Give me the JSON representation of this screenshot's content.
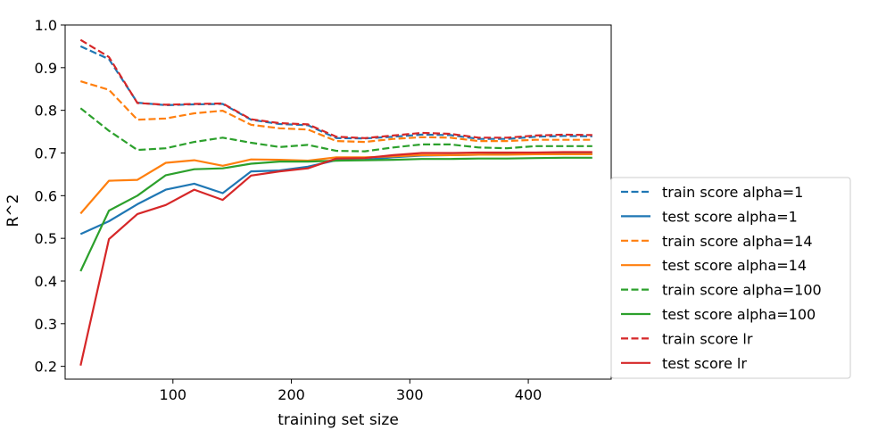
{
  "chart_data": {
    "type": "line",
    "xlabel": "training set size",
    "ylabel": "R^2",
    "xlim": [
      9,
      470
    ],
    "ylim": [
      0.17,
      1.0
    ],
    "xticks": [
      100,
      200,
      300,
      400
    ],
    "yticks": [
      0.2,
      0.3,
      0.4,
      0.5,
      0.6,
      0.7,
      0.8,
      0.9,
      1.0
    ],
    "grid": false,
    "legend_position": "right, outside the axes",
    "x": [
      22,
      46,
      70,
      94,
      118,
      142,
      166,
      190,
      214,
      238,
      262,
      286,
      310,
      334,
      358,
      382,
      406,
      430,
      454
    ],
    "series": [
      {
        "name": "train score alpha=1",
        "color": "#1f77b4",
        "style": "dashed",
        "values": [
          0.95,
          0.92,
          0.818,
          0.812,
          0.814,
          0.815,
          0.778,
          0.768,
          0.765,
          0.735,
          0.734,
          0.738,
          0.743,
          0.742,
          0.733,
          0.733,
          0.738,
          0.74,
          0.739
        ]
      },
      {
        "name": "test score alpha=1",
        "color": "#1f77b4",
        "style": "solid",
        "values": [
          0.51,
          0.54,
          0.58,
          0.614,
          0.628,
          0.606,
          0.657,
          0.659,
          0.668,
          0.683,
          0.684,
          0.69,
          0.694,
          0.695,
          0.696,
          0.697,
          0.697,
          0.698,
          0.698
        ]
      },
      {
        "name": "train score alpha=14",
        "color": "#ff7f0e",
        "style": "dashed",
        "values": [
          0.868,
          0.848,
          0.778,
          0.781,
          0.793,
          0.799,
          0.766,
          0.758,
          0.755,
          0.728,
          0.726,
          0.733,
          0.737,
          0.736,
          0.728,
          0.728,
          0.731,
          0.731,
          0.731
        ]
      },
      {
        "name": "test score alpha=14",
        "color": "#ff7f0e",
        "style": "solid",
        "values": [
          0.558,
          0.635,
          0.637,
          0.677,
          0.683,
          0.67,
          0.685,
          0.684,
          0.682,
          0.69,
          0.69,
          0.692,
          0.695,
          0.695,
          0.696,
          0.696,
          0.697,
          0.697,
          0.697
        ]
      },
      {
        "name": "train score alpha=100",
        "color": "#2ca02c",
        "style": "dashed",
        "values": [
          0.805,
          0.752,
          0.707,
          0.711,
          0.726,
          0.736,
          0.724,
          0.714,
          0.719,
          0.705,
          0.704,
          0.713,
          0.72,
          0.72,
          0.713,
          0.711,
          0.716,
          0.716,
          0.716
        ]
      },
      {
        "name": "test score alpha=100",
        "color": "#2ca02c",
        "style": "solid",
        "values": [
          0.423,
          0.565,
          0.6,
          0.648,
          0.662,
          0.664,
          0.675,
          0.68,
          0.68,
          0.682,
          0.683,
          0.684,
          0.686,
          0.686,
          0.687,
          0.687,
          0.688,
          0.689,
          0.689
        ]
      },
      {
        "name": "train score lr",
        "color": "#d62728",
        "style": "dashed",
        "values": [
          0.965,
          0.925,
          0.817,
          0.813,
          0.815,
          0.816,
          0.779,
          0.77,
          0.767,
          0.738,
          0.735,
          0.741,
          0.747,
          0.745,
          0.736,
          0.736,
          0.741,
          0.743,
          0.742
        ]
      },
      {
        "name": "test score lr",
        "color": "#d62728",
        "style": "solid",
        "values": [
          0.202,
          0.498,
          0.557,
          0.578,
          0.614,
          0.59,
          0.647,
          0.657,
          0.664,
          0.687,
          0.688,
          0.695,
          0.7,
          0.7,
          0.701,
          0.701,
          0.701,
          0.702,
          0.702
        ]
      }
    ]
  }
}
